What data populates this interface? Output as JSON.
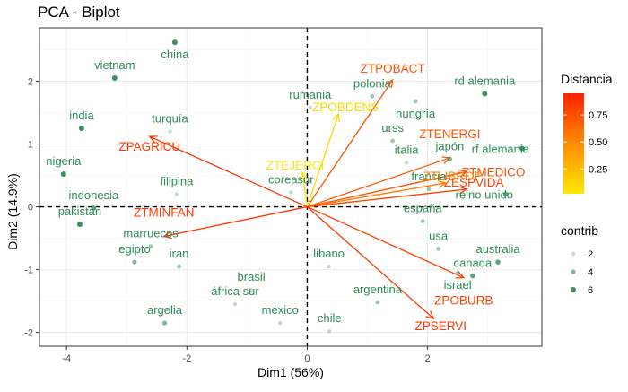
{
  "chart_data": {
    "type": "scatter",
    "title": "PCA - Biplot",
    "xlabel": "Dim1 (56%)",
    "ylabel": "Dim2 (14.9%)",
    "xlim": [
      -4.45,
      3.9
    ],
    "ylim": [
      -2.22,
      2.85
    ],
    "x_ticks": [
      -4,
      -2,
      0,
      2
    ],
    "y_ticks": [
      -2,
      -1,
      0,
      1,
      2
    ],
    "grid": true,
    "reference_lines": {
      "x": 0,
      "y": 0,
      "style": "dashed"
    },
    "individuals": [
      {
        "label": "china",
        "x": -2.2,
        "y": 2.62,
        "contrib": 6
      },
      {
        "label": "vietnam",
        "x": -3.2,
        "y": 2.05,
        "contrib": 6
      },
      {
        "label": "india",
        "x": -3.75,
        "y": 1.25,
        "contrib": 6
      },
      {
        "label": "turquía",
        "x": -2.28,
        "y": 1.2,
        "contrib": 2
      },
      {
        "label": "nigeria",
        "x": -4.05,
        "y": 0.52,
        "contrib": 6
      },
      {
        "label": "filipina",
        "x": -2.17,
        "y": 0.2,
        "contrib": 2
      },
      {
        "label": "indonesia",
        "x": -3.55,
        "y": -0.02,
        "contrib": 5
      },
      {
        "label": "coreasur",
        "x": -0.27,
        "y": 0.23,
        "contrib": 2
      },
      {
        "label": "pakistan",
        "x": -3.78,
        "y": -0.28,
        "contrib": 6
      },
      {
        "label": "marruecos",
        "x": -2.6,
        "y": -0.63,
        "contrib": 3
      },
      {
        "label": "egipto",
        "x": -2.87,
        "y": -0.88,
        "contrib": 4
      },
      {
        "label": "iran",
        "x": -2.13,
        "y": -0.95,
        "contrib": 3
      },
      {
        "label": "brasil",
        "x": -0.93,
        "y": -1.32,
        "contrib": 2
      },
      {
        "label": "libano",
        "x": 0.36,
        "y": -0.95,
        "contrib": 2
      },
      {
        "label": "áfrica sur",
        "x": -1.2,
        "y": -1.55,
        "contrib": 2
      },
      {
        "label": "argelia",
        "x": -2.37,
        "y": -1.85,
        "contrib": 4
      },
      {
        "label": "méxico",
        "x": -0.45,
        "y": -1.85,
        "contrib": 2
      },
      {
        "label": "argentina",
        "x": 1.17,
        "y": -1.52,
        "contrib": 3
      },
      {
        "label": "chile",
        "x": 0.37,
        "y": -1.98,
        "contrib": 2
      },
      {
        "label": "rumania",
        "x": 0.05,
        "y": 1.58,
        "contrib": 2
      },
      {
        "label": "polonia",
        "x": 1.08,
        "y": 1.76,
        "contrib": 3
      },
      {
        "label": "hungría",
        "x": 1.8,
        "y": 1.68,
        "contrib": 3
      },
      {
        "label": "rd alemania",
        "x": 2.95,
        "y": 1.8,
        "contrib": 6
      },
      {
        "label": "urss",
        "x": 1.42,
        "y": 1.05,
        "contrib": 3
      },
      {
        "label": "rf alemania",
        "x": 3.57,
        "y": 0.93,
        "contrib": 6
      },
      {
        "label": "italia",
        "x": 1.65,
        "y": 0.7,
        "contrib": 2
      },
      {
        "label": "japón",
        "x": 2.37,
        "y": 0.76,
        "contrib": 4
      },
      {
        "label": "reino unido",
        "x": 3.3,
        "y": 0.2,
        "contrib": 5
      },
      {
        "label": "francia",
        "x": 2.02,
        "y": 0.28,
        "contrib": 3
      },
      {
        "label": "españa",
        "x": 1.92,
        "y": -0.23,
        "contrib": 3
      },
      {
        "label": "australia",
        "x": 3.17,
        "y": -0.88,
        "contrib": 5
      },
      {
        "label": "usa",
        "x": 2.18,
        "y": -0.67,
        "contrib": 3
      },
      {
        "label": "israel",
        "x": 2.5,
        "y": -1.05,
        "contrib": 3
      },
      {
        "label": "canada",
        "x": 2.75,
        "y": -1.1,
        "contrib": 5
      }
    ],
    "variables": [
      {
        "label": "ZTPOBACT",
        "x": 1.42,
        "y": 2.02,
        "distancia": 0.72
      },
      {
        "label": "ZPOBDENS",
        "x": 0.52,
        "y": 1.48,
        "distancia": 0.1
      },
      {
        "label": "ZPAGRICU",
        "x": -2.62,
        "y": 1.12,
        "distancia": 0.85
      },
      {
        "label": "ZTEJERCI",
        "x": -0.08,
        "y": 0.55,
        "distancia": 0.05
      },
      {
        "label": "ZTENERGI",
        "x": 2.37,
        "y": 0.78,
        "distancia": 0.7
      },
      {
        "label": "ZTMEDICO",
        "x": 2.65,
        "y": 0.56,
        "distancia": 0.75
      },
      {
        "label": "ZTLIBROP",
        "x": 2.3,
        "y": 0.38,
        "distancia": 0.55
      },
      {
        "label": "ZESPVIDA",
        "x": 2.65,
        "y": 0.28,
        "distancia": 0.8
      },
      {
        "label": "ZTMINFAN",
        "x": -2.38,
        "y": -0.47,
        "distancia": 0.85
      },
      {
        "label": "ZPOBURB",
        "x": 2.6,
        "y": -1.13,
        "distancia": 0.8
      },
      {
        "label": "ZPSERVI",
        "x": 2.1,
        "y": -1.78,
        "distancia": 0.85
      }
    ],
    "legend": {
      "position": "right",
      "distancia": {
        "title": "Distancia",
        "ticks": [
          0.25,
          0.5,
          0.75
        ],
        "range": [
          0.02,
          0.95
        ]
      },
      "contrib": {
        "title": "contrib",
        "values": [
          2,
          4,
          6
        ]
      }
    },
    "colors": {
      "individual": "#2e8b57",
      "gradient_low": "#ffe800",
      "gradient_mid": "#ff8c00",
      "gradient_high": "#ff2000",
      "panel_background": "#ffffff",
      "grid": "#ebebeb",
      "panel_border": "#333333"
    }
  }
}
